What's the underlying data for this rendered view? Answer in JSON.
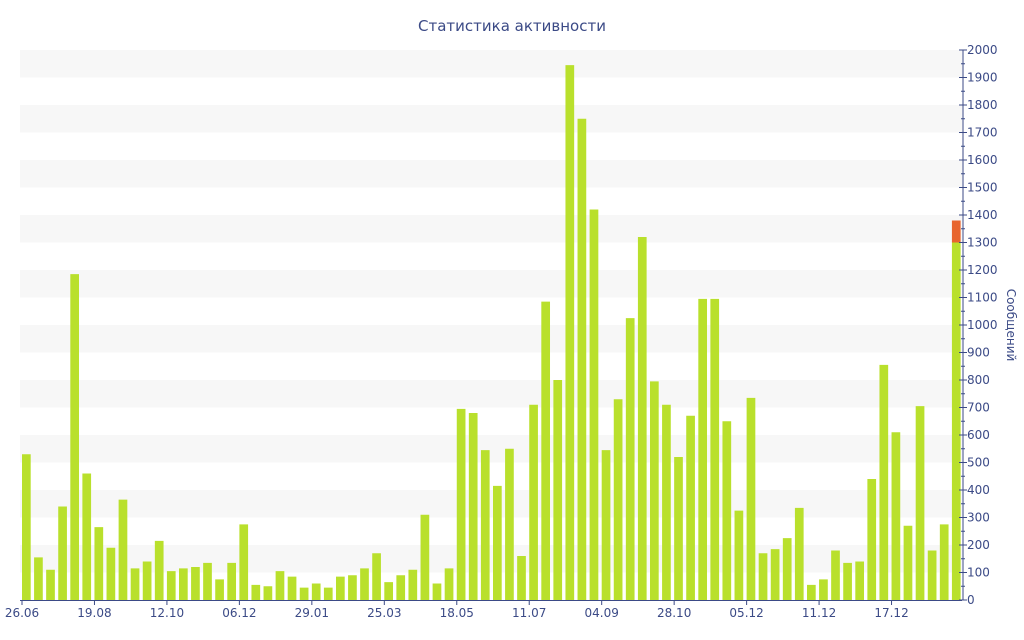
{
  "colors": {
    "bar": "#b9e02c",
    "bar_highlight": "#e8652e",
    "band": "#f7f7f7",
    "axis": "#3b4a86",
    "text": "#3b4a86"
  },
  "chart_data": {
    "type": "bar",
    "title": "Статистика активности",
    "xlabel": "",
    "ylabel": "Сообщений",
    "ylim": [
      0,
      2000
    ],
    "y_ticks": [
      0,
      100,
      200,
      300,
      400,
      500,
      600,
      700,
      800,
      900,
      1000,
      1100,
      1200,
      1300,
      1400,
      1500,
      1600,
      1700,
      1800,
      1900,
      2000
    ],
    "x_tick_labels": [
      {
        "index": 0,
        "label": "26.06"
      },
      {
        "index": 6,
        "label": "19.08"
      },
      {
        "index": 12,
        "label": "12.10"
      },
      {
        "index": 18,
        "label": "06.12"
      },
      {
        "index": 24,
        "label": "29.01"
      },
      {
        "index": 30,
        "label": "25.03"
      },
      {
        "index": 36,
        "label": "18.05"
      },
      {
        "index": 42,
        "label": "11.07"
      },
      {
        "index": 48,
        "label": "04.09"
      },
      {
        "index": 54,
        "label": "28.10"
      },
      {
        "index": 60,
        "label": "05.12"
      },
      {
        "index": 66,
        "label": "11.12"
      },
      {
        "index": 72,
        "label": "17.12"
      }
    ],
    "grid": "horizontal bands",
    "legend": "none",
    "series": [
      {
        "values": [
          530,
          155,
          110,
          340,
          1185,
          460,
          265,
          190,
          365,
          115,
          140,
          215,
          105,
          115,
          120,
          135,
          75,
          135,
          275,
          55,
          50,
          105,
          85,
          45,
          60,
          45,
          85,
          90,
          115,
          170,
          65,
          90,
          110,
          310,
          60,
          115,
          695,
          680,
          545,
          415,
          550,
          160,
          710,
          1085,
          800,
          1945,
          1750,
          1420,
          545,
          730,
          1025,
          1320,
          795,
          710,
          520,
          670,
          1095,
          1095,
          650,
          325,
          735,
          170,
          185,
          225,
          335,
          55,
          75,
          180,
          135,
          140,
          440,
          855,
          610,
          270,
          705,
          180,
          275,
          1300
        ]
      },
      {
        "values": [
          0,
          0,
          0,
          0,
          0,
          0,
          0,
          0,
          0,
          0,
          0,
          0,
          0,
          0,
          0,
          0,
          0,
          0,
          0,
          0,
          0,
          0,
          0,
          0,
          0,
          0,
          0,
          0,
          0,
          0,
          0,
          0,
          0,
          0,
          0,
          0,
          0,
          0,
          0,
          0,
          0,
          0,
          0,
          0,
          0,
          0,
          0,
          0,
          0,
          0,
          0,
          0,
          0,
          0,
          0,
          0,
          0,
          0,
          0,
          0,
          0,
          0,
          0,
          0,
          0,
          0,
          0,
          0,
          0,
          0,
          0,
          0,
          0,
          0,
          0,
          0,
          0,
          80
        ]
      }
    ]
  }
}
